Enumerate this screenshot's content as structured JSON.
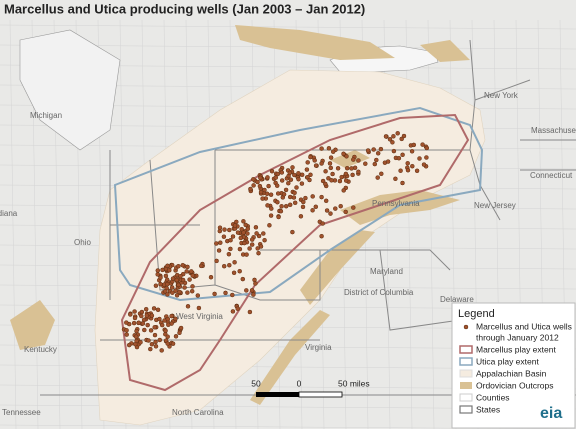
{
  "title": "Marcellus and Utica producing wells (Jan 2003 – Jan 2012)",
  "map_labels": [
    "Michigan",
    "Ohio",
    "Indiana",
    "Kentucky",
    "West Virginia",
    "Virginia",
    "Pennsylvania",
    "New York",
    "Massachusetts",
    "Connecticut",
    "New Jersey",
    "Maryland",
    "District of Columbia",
    "Delaware",
    "Tennessee",
    "North Carolina"
  ],
  "legend": {
    "title": "Legend",
    "items": [
      "Marcellus and Utica wells",
      "through January 2012",
      "Marcellus play extent",
      "Utica play extent",
      "Appalachian Basin",
      "Ordovician Outcrops",
      "Counties",
      "States"
    ]
  },
  "scale": {
    "left": "50",
    "middle": "0",
    "right": "50 miles"
  },
  "logo": "eia"
}
